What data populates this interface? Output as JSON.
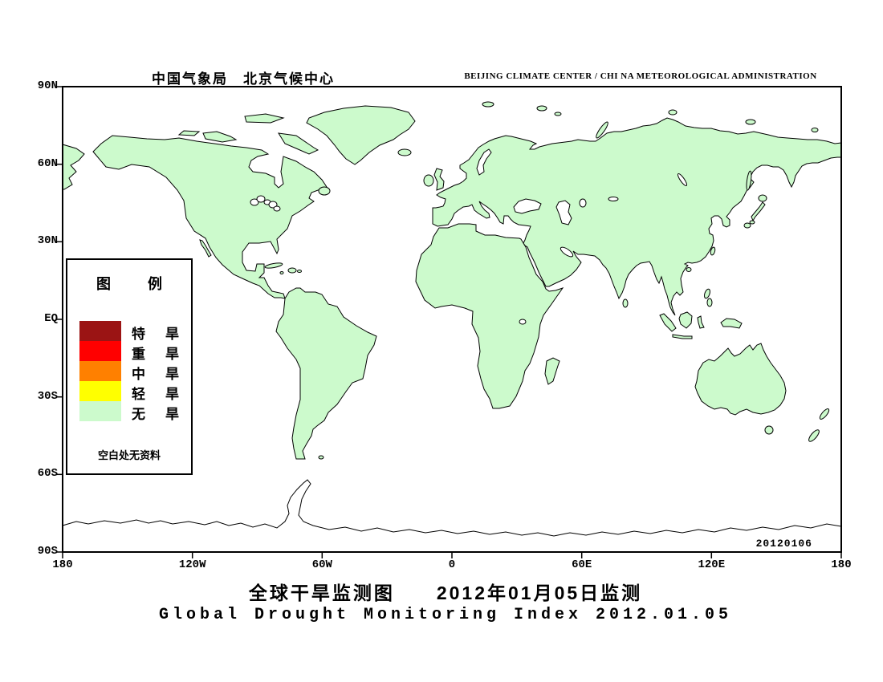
{
  "header": {
    "cn": "中国气象局　北京气候中心",
    "en": "BEIJING CLIMATE CENTER / CHI NA METEOROLOGICAL ADMINISTRATION"
  },
  "titles": {
    "cn": "全球干旱监测图　　2012年01月05日监测",
    "en": "Global Drought Monitoring Index  2012.01.05"
  },
  "date_stamp": "20120106",
  "axes": {
    "lat_labels": [
      "90N",
      "60N",
      "30N",
      "EQ",
      "30S",
      "60S",
      "90S"
    ],
    "lon_labels": [
      "180",
      "120W",
      "60W",
      "0",
      "60E",
      "120E",
      "180"
    ]
  },
  "legend": {
    "title": "图　例",
    "note": "空白处无资料",
    "items": [
      {
        "label": "特　旱",
        "color": "#9B1414",
        "severity": "extreme drought"
      },
      {
        "label": "重　旱",
        "color": "#FF0000",
        "severity": "severe drought"
      },
      {
        "label": "中　旱",
        "color": "#FF8000",
        "severity": "moderate drought"
      },
      {
        "label": "轻　旱",
        "color": "#FFFF00",
        "severity": "light drought"
      },
      {
        "label": "无　旱",
        "color": "#CCFACC",
        "severity": "no drought"
      }
    ]
  },
  "colors": {
    "land": "#CCFACC",
    "ocean": "#FFFFFF",
    "frame": "#000000",
    "extreme": "#9B1414",
    "severe": "#FF0000",
    "moderate": "#FF8000",
    "light": "#FFFF00"
  }
}
